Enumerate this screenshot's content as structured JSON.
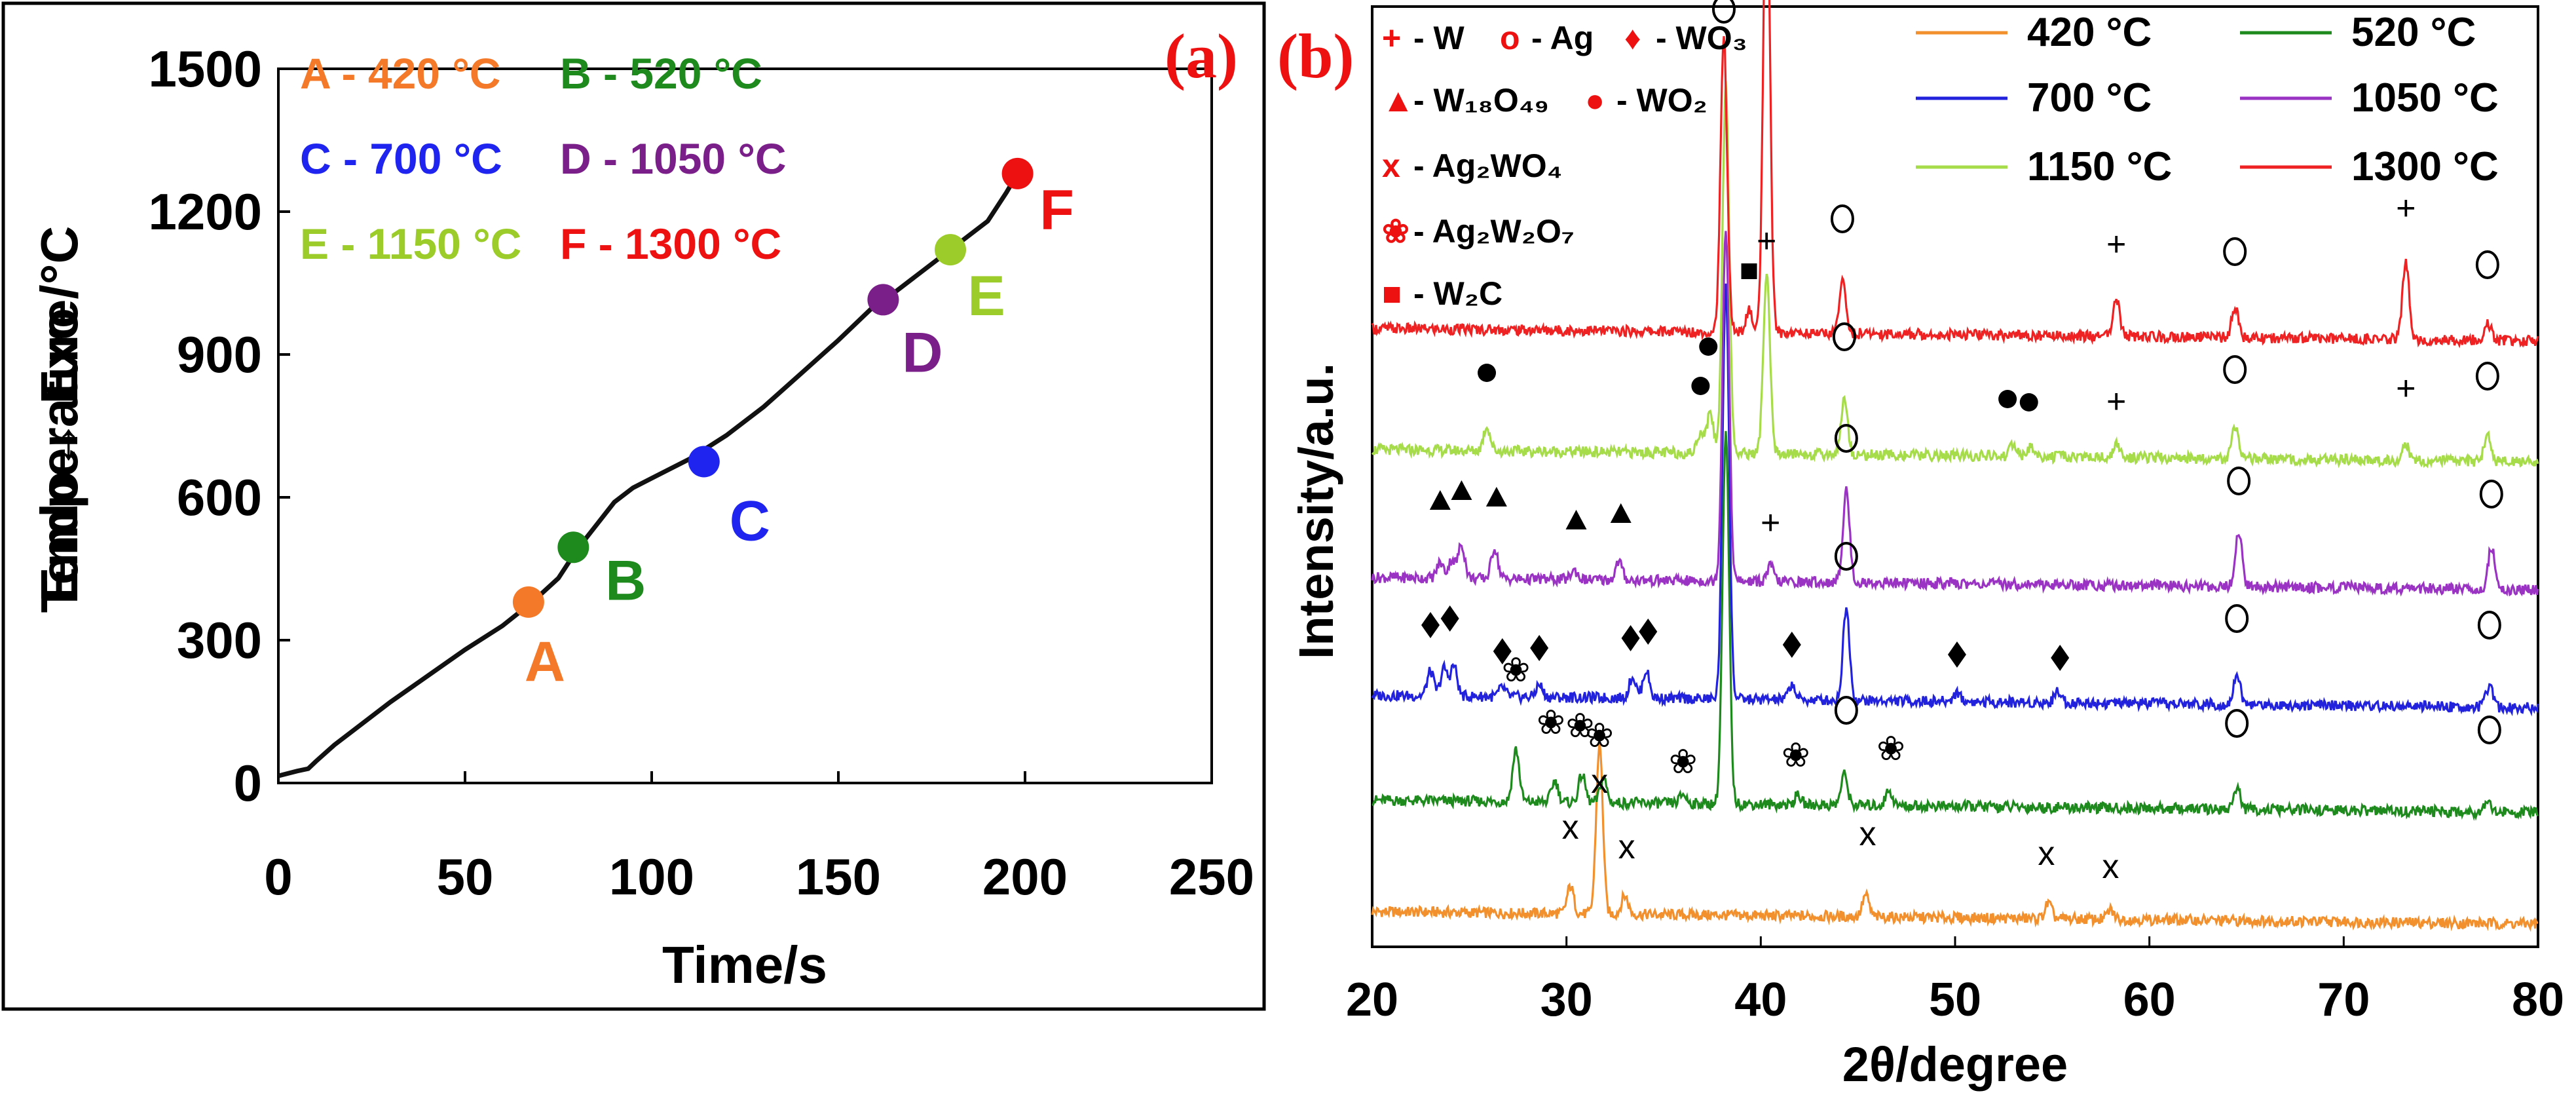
{
  "chart_data": [
    {
      "panel": "(a)",
      "type": "line",
      "xlabel": "Time/s",
      "ylabel": "Temperature/°C",
      "ylabel_right": "Endo↔ Exo",
      "xlim": [
        0,
        250
      ],
      "ylim": [
        0,
        1500
      ],
      "xticks": [
        0,
        50,
        100,
        150,
        200,
        250
      ],
      "yticks": [
        0,
        300,
        600,
        900,
        1200,
        1500
      ],
      "curve": [
        [
          0,
          15
        ],
        [
          5,
          25
        ],
        [
          8,
          30
        ],
        [
          10,
          45
        ],
        [
          15,
          80
        ],
        [
          20,
          110
        ],
        [
          30,
          170
        ],
        [
          40,
          225
        ],
        [
          50,
          280
        ],
        [
          60,
          330
        ],
        [
          68,
          380
        ],
        [
          75,
          430
        ],
        [
          80,
          490
        ],
        [
          85,
          540
        ],
        [
          90,
          590
        ],
        [
          95,
          620
        ],
        [
          100,
          640
        ],
        [
          110,
          680
        ],
        [
          120,
          730
        ],
        [
          130,
          790
        ],
        [
          140,
          860
        ],
        [
          150,
          930
        ],
        [
          160,
          1005
        ],
        [
          165,
          1030
        ],
        [
          170,
          1060
        ],
        [
          180,
          1120
        ],
        [
          190,
          1180
        ],
        [
          195,
          1240
        ],
        [
          198,
          1280
        ]
      ],
      "points": [
        {
          "label": "A",
          "x": 67,
          "y": 380,
          "color": "#f47a2a"
        },
        {
          "label": "B",
          "x": 79,
          "y": 495,
          "color": "#1e8a1e"
        },
        {
          "label": "C",
          "x": 114,
          "y": 675,
          "color": "#1f24ee"
        },
        {
          "label": "D",
          "x": 162,
          "y": 1015,
          "color": "#7a1f8a"
        },
        {
          "label": "E",
          "x": 180,
          "y": 1120,
          "color": "#9ccc2a"
        },
        {
          "label": "F",
          "x": 198,
          "y": 1280,
          "color": "#ee1111"
        }
      ],
      "key": [
        {
          "text": "A - 420 °C",
          "color": "#f47a2a"
        },
        {
          "text": "B - 520 °C",
          "color": "#1e8a1e"
        },
        {
          "text": "C - 700 °C",
          "color": "#1f24ee"
        },
        {
          "text": "D - 1050 °C",
          "color": "#7a1f8a"
        },
        {
          "text": "E - 1150 °C",
          "color": "#9ccc2a"
        },
        {
          "text": "F - 1300 °C",
          "color": "#ee1111"
        }
      ]
    },
    {
      "panel": "(b)",
      "type": "line",
      "xlabel": "2θ/degree",
      "ylabel": "Intensity/a.u.",
      "xlim": [
        20,
        80
      ],
      "xticks": [
        20,
        30,
        40,
        50,
        60,
        70,
        80
      ],
      "series": [
        {
          "name": "420 °C",
          "color": "#f2902e",
          "offset": 0,
          "peaks": [
            [
              30.2,
              0.09
            ],
            [
              31.7,
              0.55
            ],
            [
              33.0,
              0.06
            ],
            [
              45.4,
              0.07
            ],
            [
              54.8,
              0.05
            ],
            [
              58.0,
              0.03
            ]
          ]
        },
        {
          "name": "520 °C",
          "color": "#1e8a1e",
          "offset": 1,
          "peaks": [
            [
              27.4,
              0.17
            ],
            [
              29.4,
              0.07
            ],
            [
              30.8,
              0.09
            ],
            [
              31.9,
              0.08
            ],
            [
              36.0,
              0.03
            ],
            [
              38.2,
              1.2
            ],
            [
              41.9,
              0.03
            ],
            [
              44.3,
              0.1
            ],
            [
              46.6,
              0.05
            ],
            [
              64.5,
              0.07
            ],
            [
              77.4,
              0.04
            ]
          ]
        },
        {
          "name": "700 °C",
          "color": "#2222dd",
          "offset": 2,
          "peaks": [
            [
              23.0,
              0.08
            ],
            [
              23.7,
              0.09
            ],
            [
              24.2,
              0.1
            ],
            [
              26.7,
              0.03
            ],
            [
              28.6,
              0.04
            ],
            [
              33.4,
              0.07
            ],
            [
              34.1,
              0.09
            ],
            [
              38.2,
              1.35
            ],
            [
              41.6,
              0.05
            ],
            [
              44.4,
              0.3
            ],
            [
              50.1,
              0.03
            ],
            [
              55.3,
              0.04
            ],
            [
              64.5,
              0.1
            ],
            [
              77.5,
              0.07
            ]
          ]
        },
        {
          "name": "1050 °C",
          "color": "#9a33c4",
          "offset": 3,
          "peaks": [
            [
              23.5,
              0.05
            ],
            [
              24.1,
              0.06
            ],
            [
              24.6,
              0.11
            ],
            [
              26.3,
              0.1
            ],
            [
              30.4,
              0.03
            ],
            [
              32.7,
              0.06
            ],
            [
              38.2,
              1.15
            ],
            [
              40.5,
              0.05
            ],
            [
              44.4,
              0.3
            ],
            [
              64.6,
              0.18
            ],
            [
              77.6,
              0.14
            ]
          ]
        },
        {
          "name": "1150 °C",
          "color": "#a6dc4a",
          "offset": 4,
          "peaks": [
            [
              25.9,
              0.08
            ],
            [
              36.9,
              0.07
            ],
            [
              37.4,
              0.13
            ],
            [
              38.2,
              1.2
            ],
            [
              40.3,
              0.58
            ],
            [
              44.3,
              0.18
            ],
            [
              53.0,
              0.04
            ],
            [
              53.9,
              0.03
            ],
            [
              58.3,
              0.04
            ],
            [
              64.4,
              0.1
            ],
            [
              73.2,
              0.05
            ],
            [
              77.4,
              0.09
            ]
          ]
        },
        {
          "name": "1300 °C",
          "color": "#ee2222",
          "offset": 5,
          "peaks": [
            [
              38.1,
              0.95
            ],
            [
              39.4,
              0.07
            ],
            [
              40.3,
              1.55
            ],
            [
              44.2,
              0.17
            ],
            [
              58.3,
              0.12
            ],
            [
              64.4,
              0.1
            ],
            [
              73.2,
              0.25
            ],
            [
              77.4,
              0.06
            ]
          ]
        }
      ],
      "phase_key": [
        {
          "symbol": "+",
          "text": "- W"
        },
        {
          "symbol": "o",
          "text": "- Ag"
        },
        {
          "symbol": "♦",
          "text": "- WO₃"
        },
        {
          "symbol": "▲",
          "text": "- W₁₈O₄₉"
        },
        {
          "symbol": "●",
          "text": "- WO₂"
        },
        {
          "symbol": "x",
          "text": "- Ag₂WO₄"
        },
        {
          "symbol": "❀",
          "text": "- Ag₂W₂O₇"
        },
        {
          "symbol": "■",
          "text": "- W₂C"
        }
      ]
    }
  ]
}
